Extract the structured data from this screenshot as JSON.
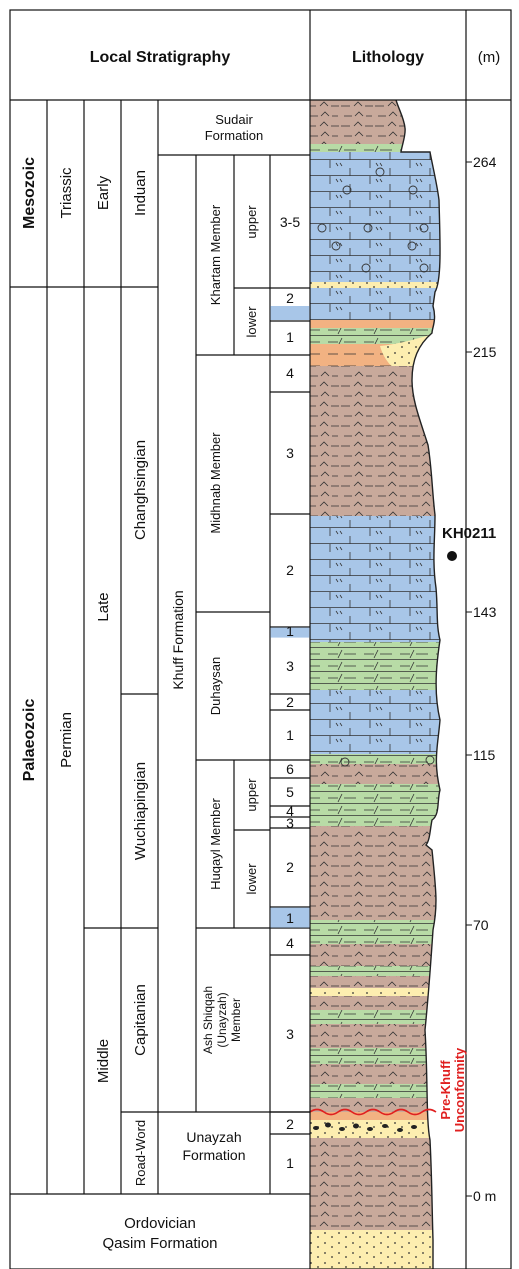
{
  "header": {
    "local_stratigraphy": "Local Stratigraphy",
    "lithology": "Lithology",
    "units": "(m)"
  },
  "eras": [
    "Mesozoic",
    "Palaeozoic"
  ],
  "systems": [
    "Triassic",
    "Permian"
  ],
  "series": [
    "Early",
    "Late",
    "Middle"
  ],
  "stages": [
    "Induan",
    "Changhsingian",
    "Wuchiapingian",
    "Capitanian",
    "Road-Word"
  ],
  "formations": {
    "sudair": [
      "Sudair",
      "Formation"
    ],
    "khuff": "Khuff Formation",
    "unayzah": [
      "Unayzah",
      "Formation"
    ],
    "ordovician": [
      "Ordovician",
      "Qasim Formation"
    ]
  },
  "members": {
    "khartam": "Khartam Member",
    "midhnab": "Midhnab Member",
    "duhaysan": "Duhaysan",
    "huqayl": "Huqayl Member",
    "ash_shiqqah": [
      "Ash Shiqqah",
      "(Unayzah)",
      "Member"
    ]
  },
  "submembers": [
    "upper",
    "lower",
    "upper",
    "lower"
  ],
  "units": [
    "3-5",
    "2",
    "1",
    "4",
    "3",
    "2",
    "1",
    "3",
    "2",
    "1",
    "6",
    "5",
    "4",
    "3",
    "2",
    "1",
    "4",
    "3",
    "2",
    "1"
  ],
  "depth_ticks": [
    "264",
    "215",
    "143",
    "115",
    "70",
    "0 m"
  ],
  "well_label": "KH0211",
  "unconformity_label": [
    "Pre-Khuff",
    "Unconformity"
  ],
  "colors": {
    "shale": "#c8a99b",
    "carbonate": "#a8c6e8",
    "marl": "#b8dba6",
    "sandstone": "#fdeeb0",
    "redbed": "#f2b282",
    "unconformity": "#e02020"
  }
}
